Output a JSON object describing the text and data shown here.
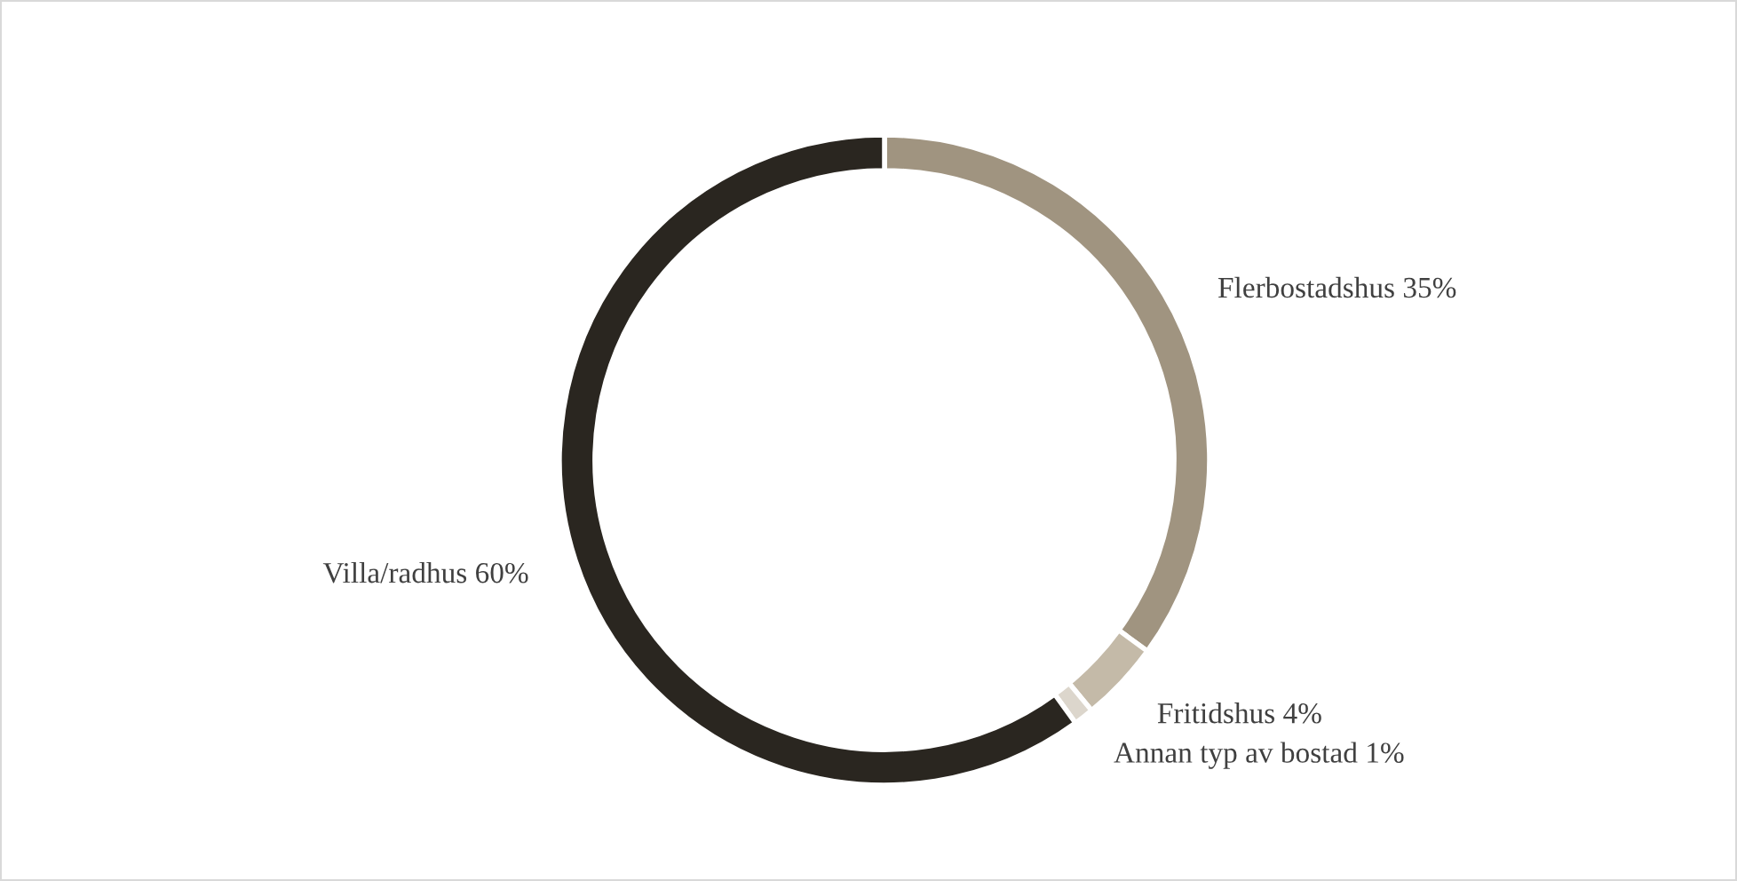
{
  "chart_data": {
    "type": "donut",
    "categories": [
      "Flerbostadshus",
      "Fritidshus",
      "Annan typ av bostad",
      "Villa/radhus"
    ],
    "values": [
      35,
      4,
      1,
      60
    ],
    "value_labels": [
      "35%",
      "4%",
      "1%",
      "60%"
    ],
    "colors": [
      "#a09480",
      "#c4baa8",
      "#dcd6cc",
      "#2a2620"
    ],
    "legend": false
  }
}
